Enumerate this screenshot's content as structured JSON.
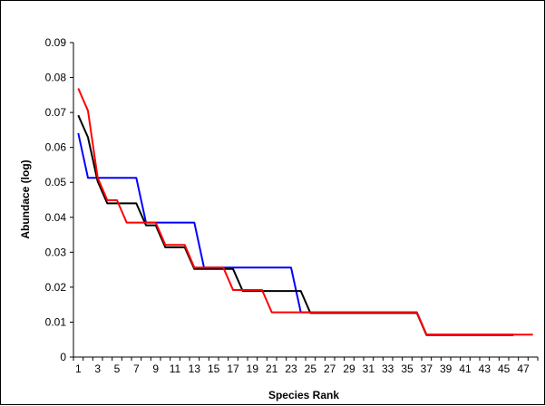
{
  "chart_data": {
    "type": "line",
    "title": "",
    "xlabel": "Species Rank",
    "ylabel": "Abundace (log)",
    "xlim": [
      1,
      48
    ],
    "ylim": [
      0,
      0.09
    ],
    "y_ticks": [
      0,
      0.01,
      0.02,
      0.03,
      0.04,
      0.05,
      0.06,
      0.07,
      0.08,
      0.09
    ],
    "y_tick_labels": [
      "0",
      "0.01",
      "0.02",
      "0.03",
      "0.04",
      "0.05",
      "0.06",
      "0.07",
      "0.08",
      "0.09"
    ],
    "x_tick_labels": [
      "1",
      "3",
      "5",
      "7",
      "9",
      "11",
      "13",
      "15",
      "17",
      "19",
      "21",
      "23",
      "25",
      "27",
      "29",
      "31",
      "33",
      "35",
      "37",
      "39",
      "41",
      "43",
      "45",
      "47"
    ],
    "grid": false,
    "legend": "none",
    "series": [
      {
        "color": "#0000ff",
        "x": [
          1,
          2,
          3,
          4,
          5,
          6,
          7,
          8,
          9,
          10,
          11,
          12,
          13,
          14,
          15,
          16,
          17,
          18,
          19,
          20,
          21,
          22,
          23,
          24,
          25,
          26,
          27,
          28,
          29,
          30,
          31,
          32,
          33,
          34,
          35,
          36,
          37,
          38,
          39,
          40,
          41,
          42,
          43,
          44,
          45,
          46
        ],
        "y": [
          0.0641,
          0.0513,
          0.0513,
          0.0513,
          0.0513,
          0.0513,
          0.0513,
          0.0385,
          0.0385,
          0.0385,
          0.0385,
          0.0385,
          0.0385,
          0.0256,
          0.0256,
          0.0256,
          0.0256,
          0.0256,
          0.0256,
          0.0256,
          0.0256,
          0.0256,
          0.0256,
          0.0128,
          0.0128,
          0.0128,
          0.0128,
          0.0128,
          0.0128,
          0.0128,
          0.0128,
          0.0128,
          0.0128,
          0.0128,
          0.0128,
          0.0128,
          0.0064,
          0.0064,
          0.0064,
          0.0064,
          0.0064,
          0.0064,
          0.0064,
          0.0064,
          0.0064,
          0.0064
        ]
      },
      {
        "color": "#000000",
        "x": [
          1,
          2,
          3,
          4,
          5,
          6,
          7,
          8,
          9,
          10,
          11,
          12,
          13,
          14,
          15,
          16,
          17,
          18,
          19,
          20,
          21,
          22,
          23,
          24,
          25,
          26,
          27,
          28,
          29,
          30,
          31,
          32,
          33,
          34,
          35,
          36,
          37,
          38,
          39,
          40,
          41,
          42,
          43,
          44,
          45,
          46
        ],
        "y": [
          0.0692,
          0.0629,
          0.0503,
          0.044,
          0.044,
          0.044,
          0.044,
          0.0377,
          0.0377,
          0.0314,
          0.0314,
          0.0314,
          0.0252,
          0.0252,
          0.0252,
          0.0252,
          0.0252,
          0.0189,
          0.0189,
          0.0189,
          0.0189,
          0.0189,
          0.0189,
          0.0189,
          0.0126,
          0.0126,
          0.0126,
          0.0126,
          0.0126,
          0.0126,
          0.0126,
          0.0126,
          0.0126,
          0.0126,
          0.0126,
          0.0126,
          0.0063,
          0.0063,
          0.0063,
          0.0063,
          0.0063,
          0.0063,
          0.0063,
          0.0063,
          0.0063,
          0.0063
        ]
      },
      {
        "color": "#ff0000",
        "x": [
          1,
          2,
          3,
          4,
          5,
          6,
          7,
          8,
          9,
          10,
          11,
          12,
          13,
          14,
          15,
          16,
          17,
          18,
          19,
          20,
          21,
          22,
          23,
          24,
          25,
          26,
          27,
          28,
          29,
          30,
          31,
          32,
          33,
          34,
          35,
          36,
          37,
          38,
          39,
          40,
          41,
          42,
          43,
          44,
          45,
          46,
          47,
          48
        ],
        "y": [
          0.0769,
          0.0705,
          0.0513,
          0.0449,
          0.0449,
          0.0385,
          0.0385,
          0.0385,
          0.0385,
          0.0321,
          0.0321,
          0.0321,
          0.0256,
          0.0256,
          0.0256,
          0.0256,
          0.0192,
          0.0192,
          0.0192,
          0.0192,
          0.0128,
          0.0128,
          0.0128,
          0.0128,
          0.0128,
          0.0128,
          0.0128,
          0.0128,
          0.0128,
          0.0128,
          0.0128,
          0.0128,
          0.0128,
          0.0128,
          0.0128,
          0.0128,
          0.0064,
          0.0064,
          0.0064,
          0.0064,
          0.0064,
          0.0064,
          0.0064,
          0.0064,
          0.0064,
          0.0064,
          0.0064,
          0.0064
        ]
      }
    ]
  }
}
